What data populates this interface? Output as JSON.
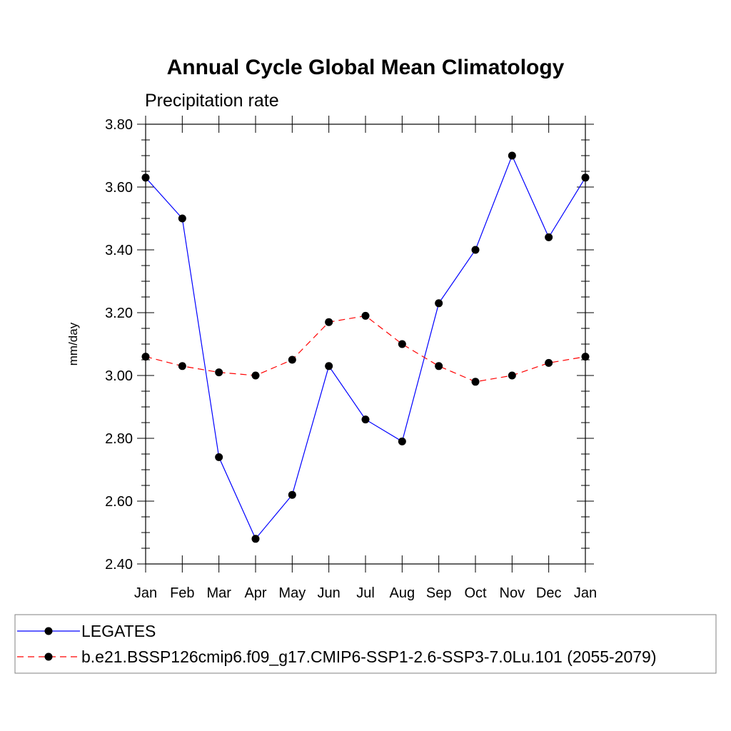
{
  "chart_data": {
    "type": "line",
    "title": "Annual Cycle Global Mean Climatology",
    "subtitle": "Precipitation rate",
    "xlabel": "",
    "ylabel": "mm/day",
    "categories": [
      "Jan",
      "Feb",
      "Mar",
      "Apr",
      "May",
      "Jun",
      "Jul",
      "Aug",
      "Sep",
      "Oct",
      "Nov",
      "Dec",
      "Jan"
    ],
    "ylim": [
      2.4,
      3.8
    ],
    "yticks": [
      "2.40",
      "2.60",
      "2.80",
      "3.00",
      "3.20",
      "3.40",
      "3.60",
      "3.80"
    ],
    "grid": false,
    "legend_position": "bottom",
    "series": [
      {
        "name": "LEGATES",
        "color": "#0000ff",
        "line_style": "solid",
        "marker": "filled-circle",
        "values": [
          3.63,
          3.5,
          2.74,
          2.48,
          2.62,
          3.03,
          2.86,
          2.79,
          3.23,
          3.4,
          3.7,
          3.44,
          3.63
        ]
      },
      {
        "name": "b.e21.BSSP126cmip6.f09_g17.CMIP6-SSP1-2.6-SSP3-7.0Lu.101 (2055-2079)",
        "color": "#ff0000",
        "line_style": "dashed",
        "marker": "filled-circle",
        "values": [
          3.06,
          3.03,
          3.01,
          3.0,
          3.05,
          3.17,
          3.19,
          3.1,
          3.03,
          2.98,
          3.0,
          3.04,
          3.06
        ]
      }
    ]
  }
}
